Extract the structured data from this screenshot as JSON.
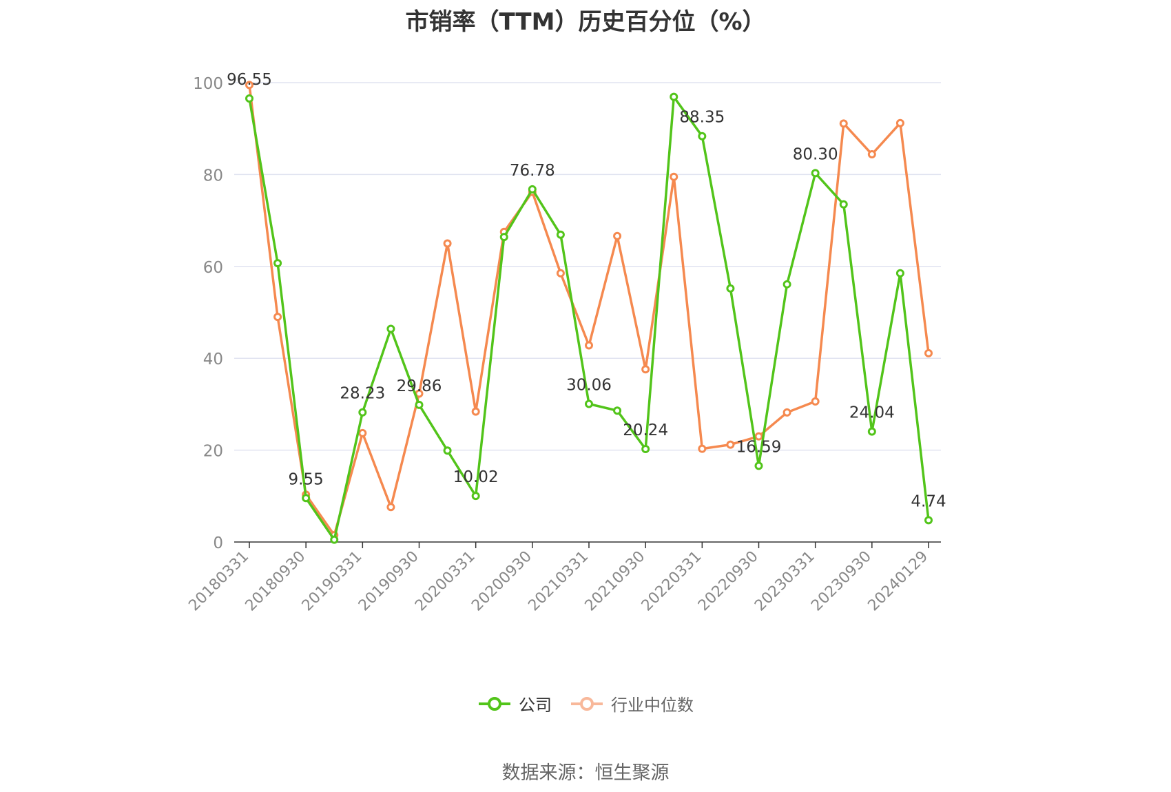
{
  "title": "市销率（TTM）历史百分位（%）",
  "source": "数据来源：恒生聚源",
  "colors": {
    "company": "#52c41a",
    "industry": "#f5894f",
    "industry_legend": "#f8b89a",
    "grid": "#e0e3f0",
    "axis": "#333333",
    "tick_label": "#888888",
    "data_label": "#333333"
  },
  "chart_data": {
    "type": "line",
    "title": "市销率（TTM）历史百分位（%）",
    "xlabel": "",
    "ylabel": "",
    "ylim": [
      0,
      100
    ],
    "yticks": [
      0,
      20,
      40,
      60,
      80,
      100
    ],
    "grid": true,
    "legend_position": "bottom",
    "x": [
      "20180331",
      "20180630",
      "20180930",
      "20181231",
      "20190331",
      "20190630",
      "20190930",
      "20191231",
      "20200331",
      "20200630",
      "20200930",
      "20201231",
      "20210331",
      "20210630",
      "20210930",
      "20211231",
      "20220331",
      "20220630",
      "20220930",
      "20221231",
      "20230331",
      "20230630",
      "20230930",
      "20231231",
      "20240129"
    ],
    "x_tick_labels": [
      "20180331",
      "20180930",
      "20190331",
      "20190930",
      "20200331",
      "20200930",
      "20210331",
      "20210930",
      "20220331",
      "20220930",
      "20230331",
      "20230930",
      "20240129"
    ],
    "series": [
      {
        "name": "公司",
        "values": [
          96.55,
          60.7,
          9.55,
          0.5,
          28.23,
          46.4,
          29.86,
          19.9,
          10.02,
          66.4,
          76.78,
          66.9,
          30.06,
          28.6,
          20.24,
          96.9,
          88.35,
          55.2,
          16.59,
          56.1,
          80.3,
          73.5,
          24.04,
          58.5,
          4.74
        ],
        "labels": {
          "0": "96.55",
          "2": "9.55",
          "4": "28.23",
          "6": "29.86",
          "8": "10.02",
          "10": "76.78",
          "12": "30.06",
          "14": "20.24",
          "16": "88.35",
          "18": "16.59",
          "20": "80.30",
          "22": "24.04",
          "24": "4.74"
        }
      },
      {
        "name": "行业中位数",
        "values": [
          99.5,
          49.0,
          10.3,
          1.5,
          23.7,
          7.6,
          32.3,
          65.0,
          28.4,
          67.5,
          76.2,
          58.5,
          42.8,
          66.6,
          37.6,
          79.5,
          20.3,
          21.2,
          23.0,
          28.2,
          30.6,
          91.1,
          84.4,
          91.2,
          41.1
        ]
      }
    ]
  }
}
